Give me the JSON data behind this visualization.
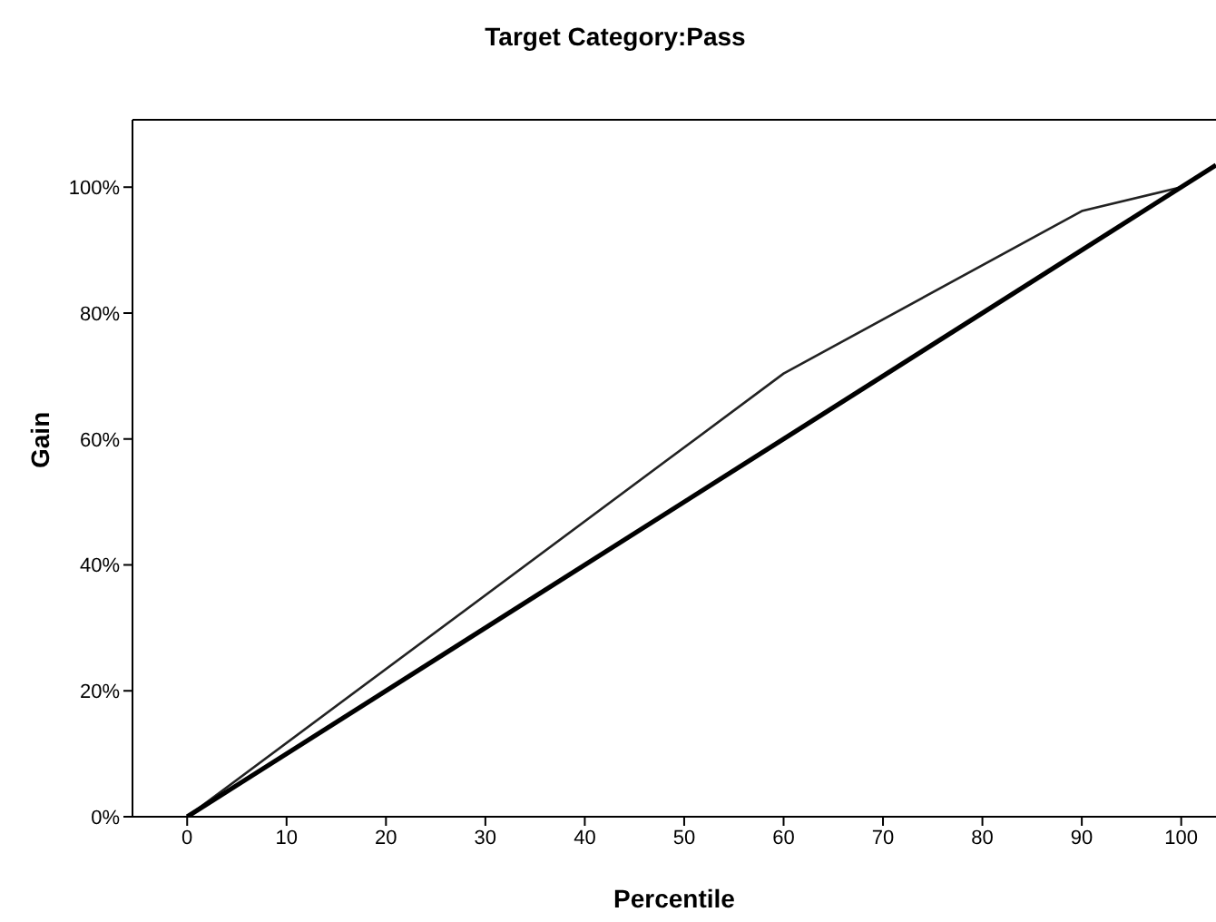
{
  "chart_data": {
    "type": "line",
    "title": "Target Category:Pass",
    "xlabel": "Percentile",
    "ylabel": "Gain",
    "series": [
      {
        "color": "#222222",
        "x": [
          0,
          60,
          90,
          100
        ],
        "values": [
          0,
          70.4,
          96.2,
          100
        ]
      },
      {
        "color": "#000000",
        "x": [
          0,
          103.5
        ],
        "values": [
          0,
          103.5
        ]
      }
    ],
    "xlim": [
      -5.5,
      103.5
    ],
    "xticks": [
      0,
      10,
      20,
      30,
      40,
      50,
      60,
      70,
      80,
      90,
      100
    ],
    "ylim": [
      0,
      110.7
    ],
    "yticks": [
      {
        "value": 0,
        "label": "0%"
      },
      {
        "value": 20,
        "label": "20%"
      },
      {
        "value": 40,
        "label": "40%"
      },
      {
        "value": 60,
        "label": "60%"
      },
      {
        "value": 80,
        "label": "80%"
      },
      {
        "value": 100,
        "label": "100%"
      }
    ],
    "grid": false,
    "marker": "none"
  }
}
